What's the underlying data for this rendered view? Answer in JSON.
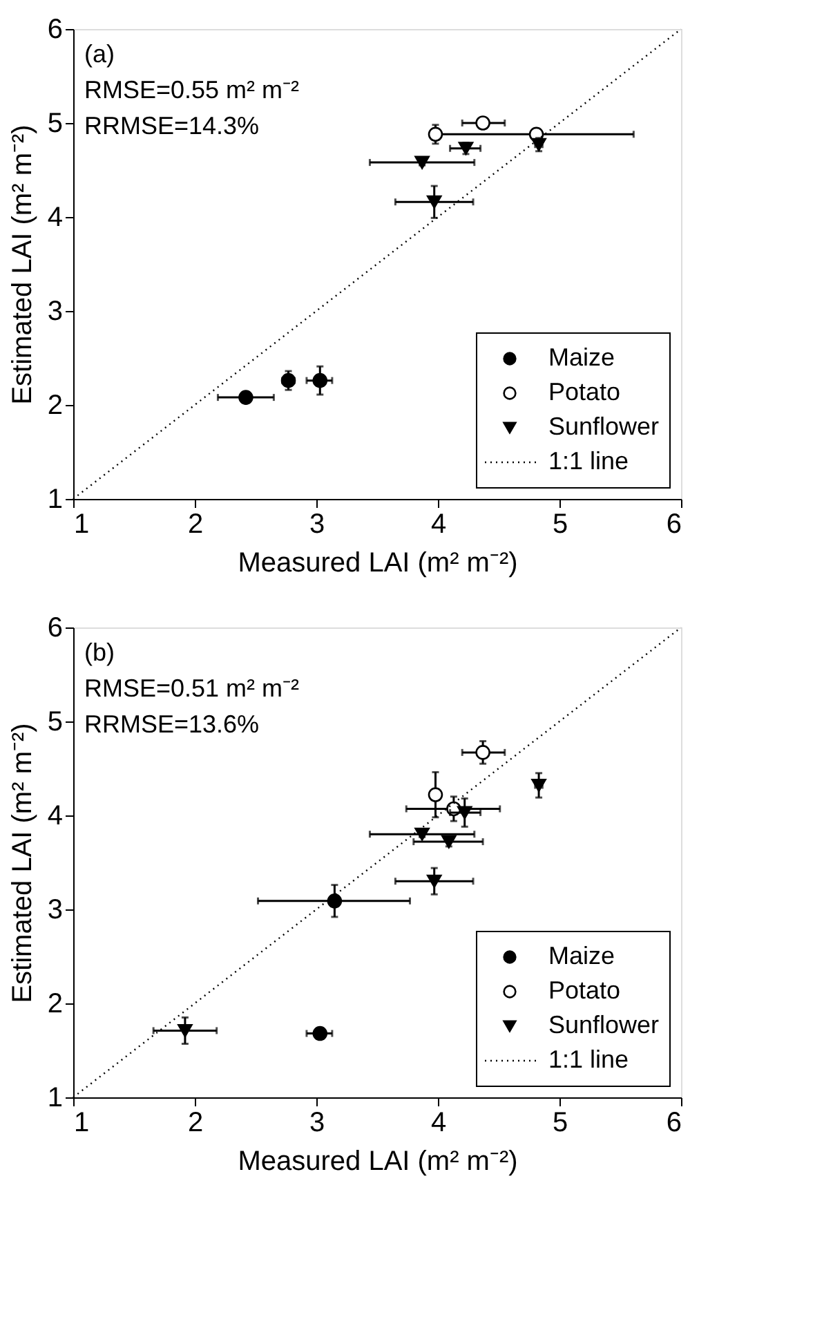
{
  "chart_data": [
    {
      "type": "scatter",
      "xlabel": "Measured LAI (m² m⁻²)",
      "ylabel": "Estimated LAI (m² m⁻²)",
      "xlim": [
        1,
        6
      ],
      "ylim": [
        1,
        6
      ],
      "xticks": [
        1,
        2,
        3,
        4,
        5,
        6
      ],
      "yticks": [
        1,
        2,
        3,
        4,
        5,
        6
      ],
      "grid": false,
      "legend": "bottom right",
      "annotations": [
        "(a)",
        "RMSE=0.55 m² m⁻²",
        "RRMSE=14.3%"
      ],
      "series": [
        {
          "name": "Maize",
          "color": "#000000",
          "marker": "circle",
          "x": [
            2.42,
            2.77,
            3.03
          ],
          "values": [
            2.08,
            2.26,
            2.26
          ],
          "errors": [
            0.05,
            0.1,
            0.15
          ],
          "xerrors": [
            [
              2.19,
              2.65
            ],
            0.05,
            [
              2.92,
              3.13
            ]
          ]
        },
        {
          "name": "Potato",
          "color": "#ffffff",
          "marker": "circle",
          "x": [
            3.98,
            4.37,
            4.81
          ],
          "values": [
            4.88,
            5.0,
            4.88
          ],
          "errors": [
            0.1,
            null,
            0.05
          ],
          "xerrors": [
            0.03,
            [
              4.2,
              4.55
            ],
            [
              4.01,
              5.61
            ]
          ]
        },
        {
          "name": "Sunflower",
          "color": "#000000",
          "marker": "triangle-down",
          "x": [
            4.23,
            3.87,
            3.97,
            4.83
          ],
          "values": [
            4.73,
            4.58,
            4.16,
            4.77
          ],
          "errors": [
            0.06,
            0.03,
            0.17,
            0.07
          ],
          "xerrors": [
            [
              4.1,
              4.35
            ],
            [
              3.44,
              4.3
            ],
            [
              3.65,
              4.29
            ],
            0.03
          ]
        },
        {
          "name": "1:1 line",
          "type": "line",
          "color": "#000000",
          "line_style": "dotted",
          "x": [
            1,
            6
          ],
          "values": [
            1,
            6
          ]
        }
      ]
    },
    {
      "type": "scatter",
      "xlabel": "Measured LAI (m² m⁻²)",
      "ylabel": "Estimated LAI (m² m⁻²)",
      "xlim": [
        1,
        6
      ],
      "ylim": [
        1,
        6
      ],
      "xticks": [
        1,
        2,
        3,
        4,
        5,
        6
      ],
      "yticks": [
        1,
        2,
        3,
        4,
        5,
        6
      ],
      "grid": false,
      "legend": "bottom right",
      "annotations": [
        "(b)",
        "RMSE=0.51 m² m⁻²",
        "RRMSE=13.6%"
      ],
      "series": [
        {
          "name": "Maize",
          "color": "#000000",
          "marker": "circle",
          "x": [
            3.15,
            3.03
          ],
          "values": [
            3.09,
            1.68
          ],
          "errors": [
            0.17,
            0.05
          ],
          "xerrors": [
            [
              2.52,
              3.77
            ],
            [
              2.92,
              3.13
            ]
          ]
        },
        {
          "name": "Potato",
          "color": "#ffffff",
          "marker": "circle",
          "x": [
            4.37,
            3.98,
            4.13
          ],
          "values": [
            4.67,
            4.22,
            4.07
          ],
          "errors": [
            0.12,
            0.24,
            0.13
          ],
          "xerrors": [
            [
              4.2,
              4.55
            ],
            0.03,
            [
              3.74,
              4.51
            ]
          ]
        },
        {
          "name": "Sunflower",
          "color": "#000000",
          "marker": "triangle-down",
          "x": [
            4.22,
            3.87,
            4.09,
            3.97,
            4.83,
            1.92
          ],
          "values": [
            4.03,
            3.8,
            3.72,
            3.3,
            4.32,
            1.71
          ],
          "errors": [
            0.15,
            0.03,
            0.05,
            0.14,
            0.13,
            0.14
          ],
          "xerrors": [
            [
              4.1,
              4.35
            ],
            [
              3.44,
              4.3
            ],
            [
              3.8,
              4.37
            ],
            [
              3.65,
              4.29
            ],
            0.03,
            [
              1.66,
              2.18
            ]
          ]
        },
        {
          "name": "1:1 line",
          "type": "line",
          "color": "#000000",
          "line_style": "dotted",
          "x": [
            1,
            6
          ],
          "values": [
            1,
            6
          ]
        }
      ]
    }
  ]
}
